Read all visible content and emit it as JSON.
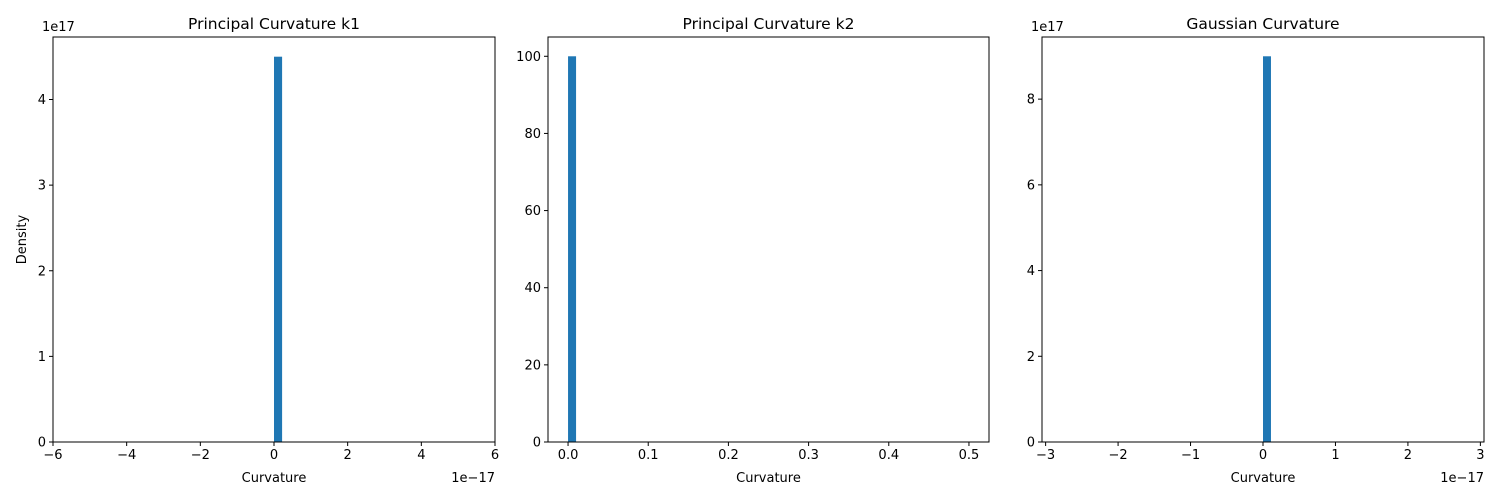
{
  "chart_data": [
    {
      "type": "bar",
      "title": "Principal Curvature k1",
      "xlabel": "Curvature",
      "ylabel": "Density",
      "x_offset_text": "1e−17",
      "y_offset_text": "1e17",
      "xlim": [
        -6,
        6
      ],
      "ylim": [
        0,
        4.73
      ],
      "xticks": [
        {
          "v": -6,
          "label": "−6"
        },
        {
          "v": -4,
          "label": "−4"
        },
        {
          "v": -2,
          "label": "−2"
        },
        {
          "v": 0,
          "label": "0"
        },
        {
          "v": 2,
          "label": "2"
        },
        {
          "v": 4,
          "label": "4"
        },
        {
          "v": 6,
          "label": "6"
        }
      ],
      "yticks": [
        {
          "v": 0,
          "label": "0"
        },
        {
          "v": 1,
          "label": "1"
        },
        {
          "v": 2,
          "label": "2"
        },
        {
          "v": 3,
          "label": "3"
        },
        {
          "v": 4,
          "label": "4"
        }
      ],
      "bars": [
        {
          "x0": 0.0,
          "x1": 0.22,
          "value": 4.5
        }
      ],
      "color": "#1f77b4"
    },
    {
      "type": "bar",
      "title": "Principal Curvature k2",
      "xlabel": "Curvature",
      "ylabel": "",
      "x_offset_text": "",
      "y_offset_text": "",
      "xlim": [
        -0.025,
        0.525
      ],
      "ylim": [
        0,
        105
      ],
      "xticks": [
        {
          "v": 0,
          "label": "0.0"
        },
        {
          "v": 0.1,
          "label": "0.1"
        },
        {
          "v": 0.2,
          "label": "0.2"
        },
        {
          "v": 0.3,
          "label": "0.3"
        },
        {
          "v": 0.4,
          "label": "0.4"
        },
        {
          "v": 0.5,
          "label": "0.5"
        }
      ],
      "yticks": [
        {
          "v": 0,
          "label": "0"
        },
        {
          "v": 20,
          "label": "20"
        },
        {
          "v": 40,
          "label": "40"
        },
        {
          "v": 60,
          "label": "60"
        },
        {
          "v": 80,
          "label": "80"
        },
        {
          "v": 100,
          "label": "100"
        }
      ],
      "bars": [
        {
          "x0": 0.0,
          "x1": 0.01,
          "value": 100
        }
      ],
      "color": "#1f77b4"
    },
    {
      "type": "bar",
      "title": "Gaussian Curvature",
      "xlabel": "Curvature",
      "ylabel": "",
      "x_offset_text": "1e−17",
      "y_offset_text": "1e17",
      "xlim": [
        -3.05,
        3.05
      ],
      "ylim": [
        0,
        9.45
      ],
      "xticks": [
        {
          "v": -3,
          "label": "−3"
        },
        {
          "v": -2,
          "label": "−2"
        },
        {
          "v": -1,
          "label": "−1"
        },
        {
          "v": 0,
          "label": "0"
        },
        {
          "v": 1,
          "label": "1"
        },
        {
          "v": 2,
          "label": "2"
        },
        {
          "v": 3,
          "label": "3"
        }
      ],
      "yticks": [
        {
          "v": 0,
          "label": "0"
        },
        {
          "v": 2,
          "label": "2"
        },
        {
          "v": 4,
          "label": "4"
        },
        {
          "v": 6,
          "label": "6"
        },
        {
          "v": 8,
          "label": "8"
        }
      ],
      "bars": [
        {
          "x0": 0.0,
          "x1": 0.11,
          "value": 9.0
        }
      ],
      "color": "#1f77b4"
    }
  ]
}
